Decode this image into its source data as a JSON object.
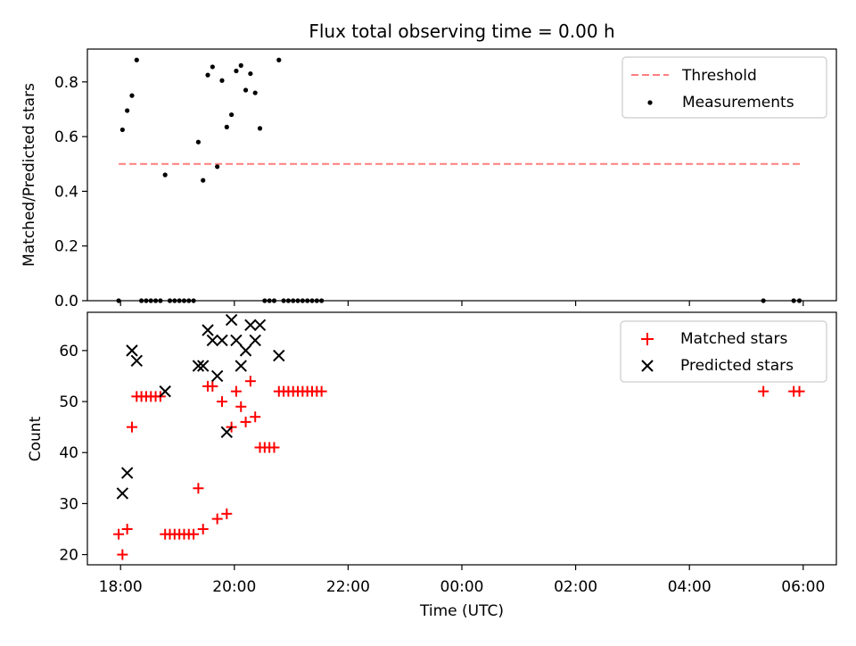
{
  "chart_data": [
    {
      "type": "scatter",
      "title": "Flux total observing time = 0.00 h",
      "xlabel": "",
      "ylabel": "Matched/Predicted stars",
      "ylim": [
        0,
        0.92
      ],
      "xlim_hours_utc": [
        "17:25",
        "06:35"
      ],
      "yticks": [
        "0.0",
        "0.2",
        "0.4",
        "0.6",
        "0.8"
      ],
      "grid": false,
      "legend_placement": "top-right",
      "series": [
        {
          "name": "Threshold",
          "style": "dashed-line",
          "color": "#ff7f7f",
          "x": [
            "17:58",
            "05:58"
          ],
          "values": [
            0.5,
            0.5
          ]
        },
        {
          "name": "Measurements",
          "style": "dots",
          "color": "#000000",
          "points": [
            [
              "17:58",
              0.0
            ],
            [
              "18:02",
              0.625
            ],
            [
              "18:07",
              0.695
            ],
            [
              "18:12",
              0.75
            ],
            [
              "18:17",
              0.88
            ],
            [
              "18:22",
              0.0
            ],
            [
              "18:27",
              0.0
            ],
            [
              "18:32",
              0.0
            ],
            [
              "18:37",
              0.0
            ],
            [
              "18:42",
              0.0
            ],
            [
              "18:47",
              0.46
            ],
            [
              "18:52",
              0.0
            ],
            [
              "18:57",
              0.0
            ],
            [
              "19:02",
              0.0
            ],
            [
              "19:07",
              0.0
            ],
            [
              "19:12",
              0.0
            ],
            [
              "19:17",
              0.0
            ],
            [
              "19:22",
              0.58
            ],
            [
              "19:27",
              0.44
            ],
            [
              "19:32",
              0.825
            ],
            [
              "19:37",
              0.855
            ],
            [
              "19:42",
              0.49
            ],
            [
              "19:47",
              0.805
            ],
            [
              "19:52",
              0.635
            ],
            [
              "19:57",
              0.68
            ],
            [
              "20:02",
              0.84
            ],
            [
              "20:07",
              0.86
            ],
            [
              "20:12",
              0.77
            ],
            [
              "20:17",
              0.83
            ],
            [
              "20:22",
              0.76
            ],
            [
              "20:27",
              0.63
            ],
            [
              "20:32",
              0.0
            ],
            [
              "20:37",
              0.0
            ],
            [
              "20:42",
              0.0
            ],
            [
              "20:47",
              0.88
            ],
            [
              "20:52",
              0.0
            ],
            [
              "20:57",
              0.0
            ],
            [
              "21:02",
              0.0
            ],
            [
              "21:07",
              0.0
            ],
            [
              "21:12",
              0.0
            ],
            [
              "21:17",
              0.0
            ],
            [
              "21:22",
              0.0
            ],
            [
              "21:27",
              0.0
            ],
            [
              "21:32",
              0.0
            ],
            [
              "05:18",
              0.0
            ],
            [
              "05:50",
              0.0
            ],
            [
              "05:56",
              0.0
            ]
          ]
        }
      ]
    },
    {
      "type": "scatter",
      "title": "",
      "xlabel": "Time (UTC)",
      "ylabel": "Count",
      "ylim": [
        18,
        67.5
      ],
      "xlim_hours_utc": [
        "17:25",
        "06:35"
      ],
      "xticks": [
        "18:00",
        "20:00",
        "22:00",
        "00:00",
        "02:00",
        "04:00",
        "06:00"
      ],
      "yticks": [
        "20",
        "30",
        "40",
        "50",
        "60"
      ],
      "grid": false,
      "legend_placement": "top-right",
      "series": [
        {
          "name": "Matched stars",
          "marker": "+",
          "color": "#ff0000",
          "points": [
            [
              "17:58",
              24
            ],
            [
              "18:02",
              20
            ],
            [
              "18:07",
              25
            ],
            [
              "18:12",
              45
            ],
            [
              "18:17",
              51
            ],
            [
              "18:22",
              51
            ],
            [
              "18:27",
              51
            ],
            [
              "18:32",
              51
            ],
            [
              "18:37",
              51
            ],
            [
              "18:42",
              51
            ],
            [
              "18:47",
              24
            ],
            [
              "18:52",
              24
            ],
            [
              "18:57",
              24
            ],
            [
              "19:02",
              24
            ],
            [
              "19:07",
              24
            ],
            [
              "19:12",
              24
            ],
            [
              "19:17",
              24
            ],
            [
              "19:22",
              33
            ],
            [
              "19:27",
              25
            ],
            [
              "19:32",
              53
            ],
            [
              "19:37",
              53
            ],
            [
              "19:42",
              27
            ],
            [
              "19:47",
              50
            ],
            [
              "19:52",
              28
            ],
            [
              "19:57",
              45
            ],
            [
              "20:02",
              52
            ],
            [
              "20:07",
              49
            ],
            [
              "20:12",
              46
            ],
            [
              "20:17",
              54
            ],
            [
              "20:22",
              47
            ],
            [
              "20:27",
              41
            ],
            [
              "20:32",
              41
            ],
            [
              "20:37",
              41
            ],
            [
              "20:42",
              41
            ],
            [
              "20:47",
              52
            ],
            [
              "20:52",
              52
            ],
            [
              "20:57",
              52
            ],
            [
              "21:02",
              52
            ],
            [
              "21:07",
              52
            ],
            [
              "21:12",
              52
            ],
            [
              "21:17",
              52
            ],
            [
              "21:22",
              52
            ],
            [
              "21:27",
              52
            ],
            [
              "21:32",
              52
            ],
            [
              "05:18",
              52
            ],
            [
              "05:50",
              52
            ],
            [
              "05:56",
              52
            ]
          ]
        },
        {
          "name": "Predicted stars",
          "marker": "x",
          "color": "#000000",
          "points": [
            [
              "18:02",
              32
            ],
            [
              "18:07",
              36
            ],
            [
              "18:12",
              60
            ],
            [
              "18:17",
              58
            ],
            [
              "18:47",
              52
            ],
            [
              "19:22",
              57
            ],
            [
              "19:27",
              57
            ],
            [
              "19:32",
              64
            ],
            [
              "19:37",
              62
            ],
            [
              "19:42",
              55
            ],
            [
              "19:47",
              62
            ],
            [
              "19:52",
              44
            ],
            [
              "19:57",
              66
            ],
            [
              "20:02",
              62
            ],
            [
              "20:07",
              57
            ],
            [
              "20:12",
              60
            ],
            [
              "20:17",
              65
            ],
            [
              "20:22",
              62
            ],
            [
              "20:27",
              65
            ],
            [
              "20:47",
              59
            ]
          ]
        }
      ]
    }
  ]
}
